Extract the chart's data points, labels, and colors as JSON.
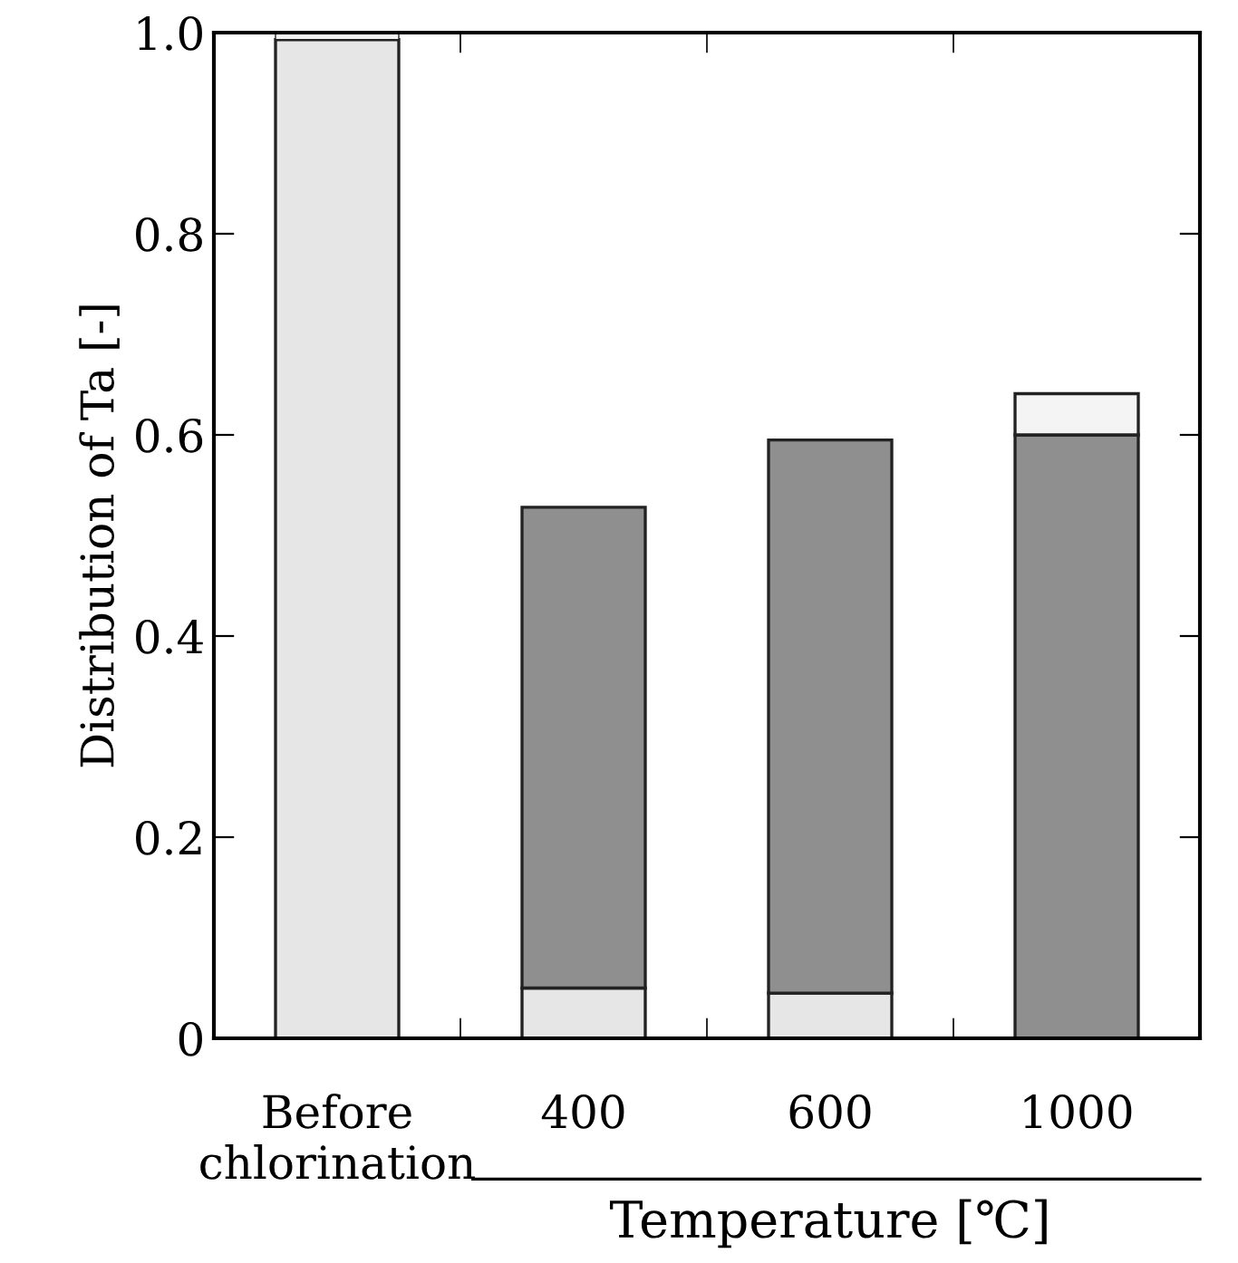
{
  "chart_data": {
    "type": "bar",
    "stacked": true,
    "ylabel": "Distribution of Ta [-]",
    "xlabel": "Temperature [℃]",
    "categories": [
      "Before\nchlorination",
      "400",
      "600",
      "1000"
    ],
    "series": [
      {
        "color": "#e6e6e6",
        "values": [
          0.993,
          0.05,
          0.045,
          0
        ]
      },
      {
        "color": "#8f8f8f",
        "values": [
          0,
          0.478,
          0.55,
          0.6
        ]
      },
      {
        "color": "#f4f4f4",
        "values": [
          0.007,
          0,
          0,
          0.041
        ]
      }
    ],
    "ylim": [
      0,
      1.0
    ],
    "yticks": [
      {
        "value": 0,
        "label": "0"
      },
      {
        "value": 0.2,
        "label": "0.2"
      },
      {
        "value": 0.4,
        "label": "0.4"
      },
      {
        "value": 0.6,
        "label": "0.6"
      },
      {
        "value": 0.8,
        "label": "0.8"
      },
      {
        "value": 1.0,
        "label": "1.0"
      }
    ],
    "grid": false,
    "legend": false
  }
}
